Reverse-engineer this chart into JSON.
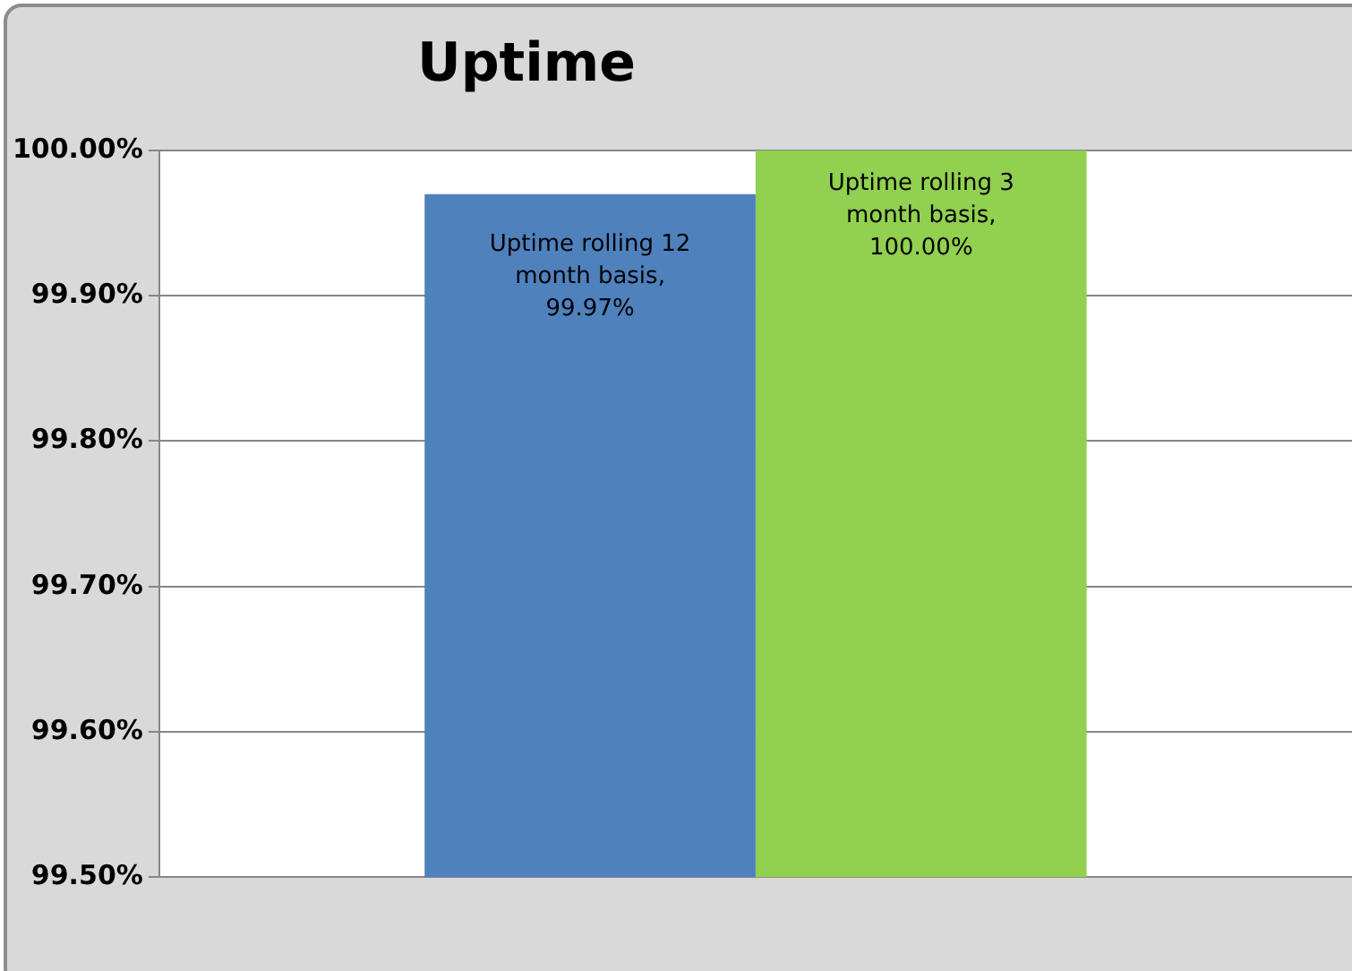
{
  "chart_data": {
    "type": "bar",
    "title": "Uptime",
    "categories": [
      null
    ],
    "series": [
      {
        "name": "Uptime rolling 12 month basis,",
        "color": "#4f81bd",
        "values": [
          99.97
        ],
        "value_labels": [
          "99.97%"
        ]
      },
      {
        "name": "Uptime rolling 3 month basis,",
        "color": "#92d050",
        "values": [
          100.0
        ],
        "value_labels": [
          "100.00%"
        ]
      }
    ],
    "ylim": [
      99.5,
      100.0
    ],
    "yticks": [
      {
        "value": 99.5,
        "label": "99.50%"
      },
      {
        "value": 99.6,
        "label": "99.60%"
      },
      {
        "value": 99.7,
        "label": "99.70%"
      },
      {
        "value": 99.8,
        "label": "99.80%"
      },
      {
        "value": 99.9,
        "label": "99.90%"
      },
      {
        "value": 100.0,
        "label": "100.00%"
      }
    ],
    "grid": "y",
    "legend": false
  }
}
